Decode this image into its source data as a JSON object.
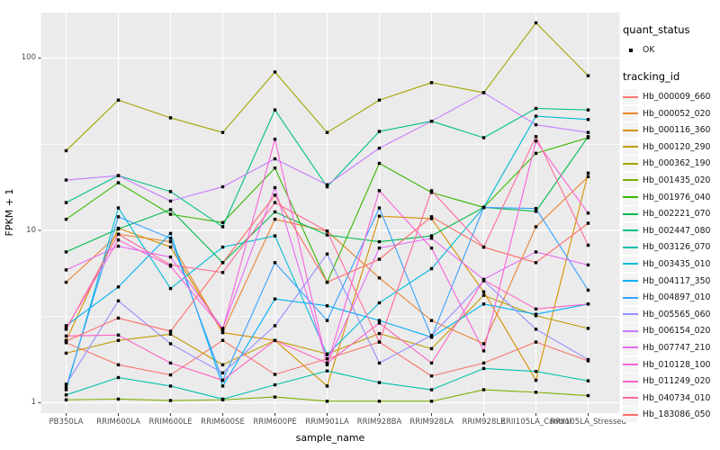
{
  "axes": {
    "x_title": "sample_name",
    "y_title": "FPKM + 1"
  },
  "legend": {
    "quant_status": {
      "title": "quant_status",
      "ok_label": "OK",
      "marker": "black-point"
    },
    "tracking_id": {
      "title": "tracking_id"
    }
  },
  "style": {
    "panel_background": "#EBEBEB",
    "gridline_color": "#FFFFFF",
    "tick_color": "#333333",
    "axis_text_color": "#4D4D4D",
    "point_color": "#000000"
  },
  "chart_data": {
    "type": "line",
    "title": "",
    "xlabel": "sample_name",
    "ylabel": "FPKM + 1",
    "x_scale": "categorical",
    "y_scale": "log10",
    "ylim": [
      1,
      190
    ],
    "yticks": [
      1,
      10,
      100
    ],
    "ytick_labels": [
      "1",
      "10",
      "100"
    ],
    "minor_gridlines": [
      3.162,
      31.62
    ],
    "grid": "on",
    "legend_position": "right",
    "categories": [
      "PB350LA",
      "RRIM600LA",
      "RRIM600LE",
      "RRIM600SE",
      "RRIM600PE",
      "RRIM901LA",
      "RRIM928BA",
      "RRIM928LA",
      "RRIM928LE",
      "RRII105LA_Control",
      "RRII105LA_Stressed"
    ],
    "quant_status_all": "OK",
    "series": [
      {
        "name": "Hb_000009_660",
        "color": "#F8766D",
        "values": [
          2.23,
          1.66,
          1.45,
          2.3,
          1.46,
          1.8,
          2.25,
          1.43,
          1.7,
          2.25,
          1.75
        ]
      },
      {
        "name": "Hb_000052_020",
        "color": "#EA8331",
        "values": [
          5.0,
          9.5,
          8.6,
          2.57,
          11.6,
          9.9,
          5.3,
          3.0,
          2.2,
          10.5,
          20.5
        ]
      },
      {
        "name": "Hb_000116_360",
        "color": "#D89000",
        "values": [
          2.3,
          10.3,
          8.0,
          2.55,
          2.3,
          1.25,
          12.1,
          11.7,
          4.4,
          1.35,
          21.5
        ]
      },
      {
        "name": "Hb_000120_290",
        "color": "#C09B00",
        "values": [
          1.94,
          2.3,
          2.5,
          1.66,
          2.3,
          1.92,
          2.52,
          2.06,
          4.2,
          3.2,
          2.7
        ]
      },
      {
        "name": "Hb_000362_190",
        "color": "#A3A500",
        "values": [
          29,
          57,
          45,
          37,
          83,
          37,
          57,
          72,
          63,
          160,
          79
        ]
      },
      {
        "name": "Hb_001435_020",
        "color": "#7CAE00",
        "values": [
          1.04,
          1.05,
          1.03,
          1.04,
          1.08,
          1.02,
          1.02,
          1.02,
          1.19,
          1.15,
          1.1
        ]
      },
      {
        "name": "Hb_001976_040",
        "color": "#39B600",
        "values": [
          11.6,
          18.9,
          12.4,
          11.1,
          23,
          5.0,
          24.5,
          16.6,
          13.6,
          28,
          34.5
        ]
      },
      {
        "name": "Hb_002221_070",
        "color": "#00BB4E",
        "values": [
          7.5,
          10.2,
          13.2,
          6.5,
          12.8,
          9.4,
          8.6,
          9.3,
          13.6,
          12.9,
          35
        ]
      },
      {
        "name": "Hb_002447_080",
        "color": "#00C087",
        "values": [
          14.5,
          20.8,
          16.8,
          10.5,
          50,
          17.9,
          37.5,
          43,
          34.5,
          51,
          50
        ]
      },
      {
        "name": "Hb_003126_070",
        "color": "#00C0AF",
        "values": [
          1.11,
          1.4,
          1.25,
          1.05,
          1.27,
          1.53,
          1.31,
          1.19,
          1.58,
          1.52,
          1.34
        ]
      },
      {
        "name": "Hb_003435_010",
        "color": "#00BCD8",
        "values": [
          1.19,
          13.5,
          4.6,
          8.0,
          9.3,
          1.9,
          3.8,
          6.0,
          13.6,
          46,
          44
        ]
      },
      {
        "name": "Hb_004117_350",
        "color": "#00B0F6",
        "values": [
          2.8,
          4.7,
          9.6,
          1.25,
          4.0,
          3.65,
          3.0,
          2.4,
          3.74,
          3.26,
          3.74
        ]
      },
      {
        "name": "Hb_004897_010",
        "color": "#35A2FF",
        "values": [
          1.23,
          12.0,
          9.0,
          1.35,
          6.5,
          3.0,
          13.5,
          2.4,
          13.6,
          13.4,
          4.5
        ]
      },
      {
        "name": "Hb_005565_060",
        "color": "#9590FF",
        "values": [
          1.28,
          3.9,
          2.2,
          1.49,
          2.8,
          7.3,
          1.7,
          2.46,
          5.1,
          2.67,
          1.78
        ]
      },
      {
        "name": "Hb_006154_020",
        "color": "#C77CFF",
        "values": [
          19.6,
          20.8,
          14.8,
          17.9,
          26,
          18.4,
          30,
          43,
          63,
          41,
          37
        ]
      },
      {
        "name": "Hb_007747_210",
        "color": "#E76BF3",
        "values": [
          5.9,
          8.1,
          7.0,
          2.7,
          17.7,
          1.7,
          7.9,
          9.0,
          5.2,
          7.5,
          6.3
        ]
      },
      {
        "name": "Hb_010128_100",
        "color": "#FA62DB",
        "values": [
          2.7,
          8.8,
          6.2,
          2.67,
          33.8,
          1.66,
          17,
          7.9,
          2.0,
          33,
          12.6
        ]
      },
      {
        "name": "Hb_011249_020",
        "color": "#FF61C3",
        "values": [
          2.44,
          2.47,
          1.7,
          1.35,
          2.3,
          1.7,
          2.9,
          1.7,
          5.15,
          3.5,
          3.74
        ]
      },
      {
        "name": "Hb_040734_010",
        "color": "#FF6A98",
        "values": [
          2.67,
          9.5,
          6.3,
          5.7,
          14.5,
          9.9,
          2.25,
          17,
          8.0,
          35,
          8.2
        ]
      },
      {
        "name": "Hb_183086_050",
        "color": "#FF6C67",
        "values": [
          2.28,
          3.1,
          2.6,
          6.5,
          16.0,
          5.0,
          6.8,
          12.0,
          8.0,
          6.5,
          11.0
        ]
      }
    ]
  }
}
